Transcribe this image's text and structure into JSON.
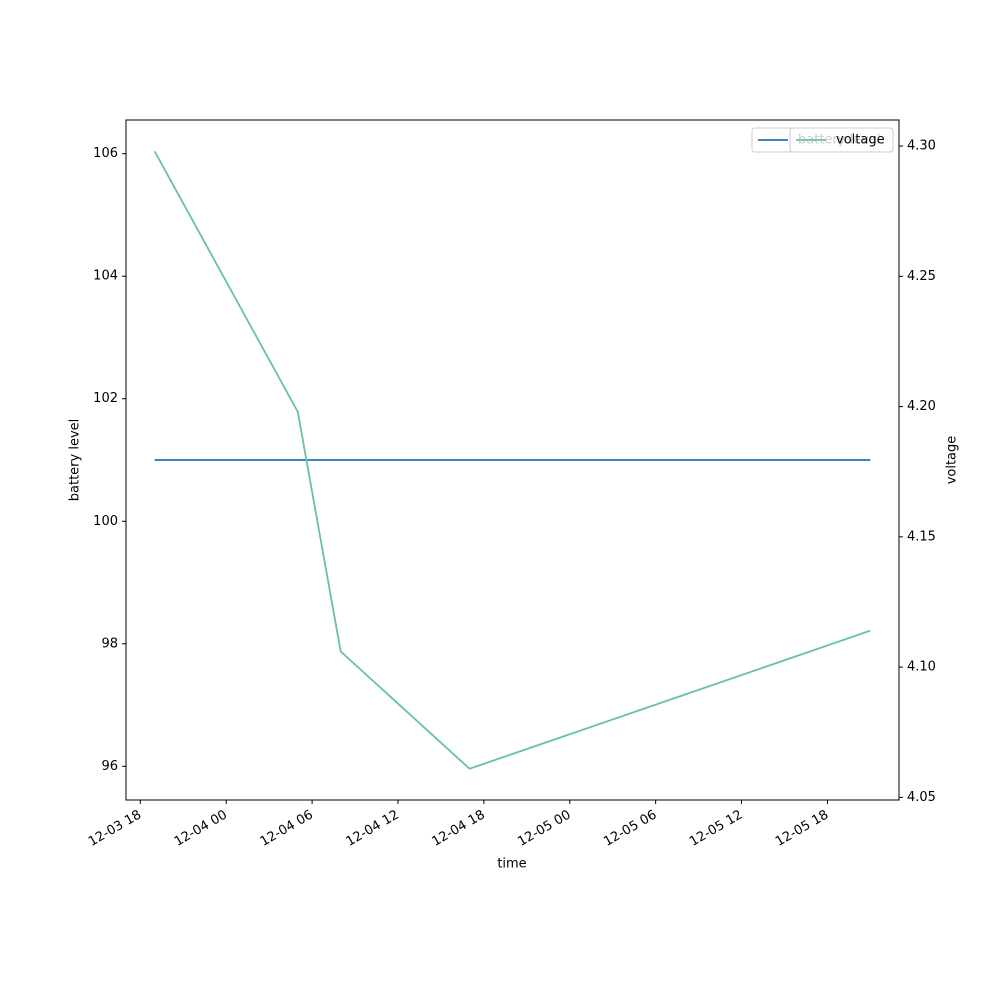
{
  "chart_data": {
    "type": "line",
    "x_label": "time",
    "y_label": "battery level",
    "y2_label": "voltage",
    "x": [
      "12-03 19",
      "12-04 05",
      "12-04 08",
      "12-04 17",
      "12-05 21"
    ],
    "series": [
      {
        "name": "battery level",
        "color": "#1f77b4",
        "values": [
          101,
          101,
          101,
          101,
          101
        ]
      },
      {
        "name": "voltage",
        "color": "#66c2a5",
        "axis": "y2",
        "values": [
          4.298,
          4.198,
          4.106,
          4.061,
          4.114
        ]
      }
    ],
    "xlim": [
      "12-03 17",
      "12-05 23"
    ],
    "xticks": [
      "12-03 18",
      "12-04 00",
      "12-04 06",
      "12-04 12",
      "12-04 18",
      "12-05 00",
      "12-05 06",
      "12-05 12",
      "12-05 18"
    ],
    "ylim": [
      95.45,
      106.55
    ],
    "yticks": [
      96,
      98,
      100,
      102,
      104,
      106
    ],
    "y2lim": [
      4.049,
      4.31
    ],
    "y2ticks": [
      4.05,
      {
        "value": 4.1,
        "label": "4.10"
      },
      4.15,
      {
        "value": 4.2,
        "label": "4.20"
      },
      4.25,
      {
        "value": 4.3,
        "label": "4.30"
      }
    ],
    "legend": "upper right",
    "grid": false
  }
}
